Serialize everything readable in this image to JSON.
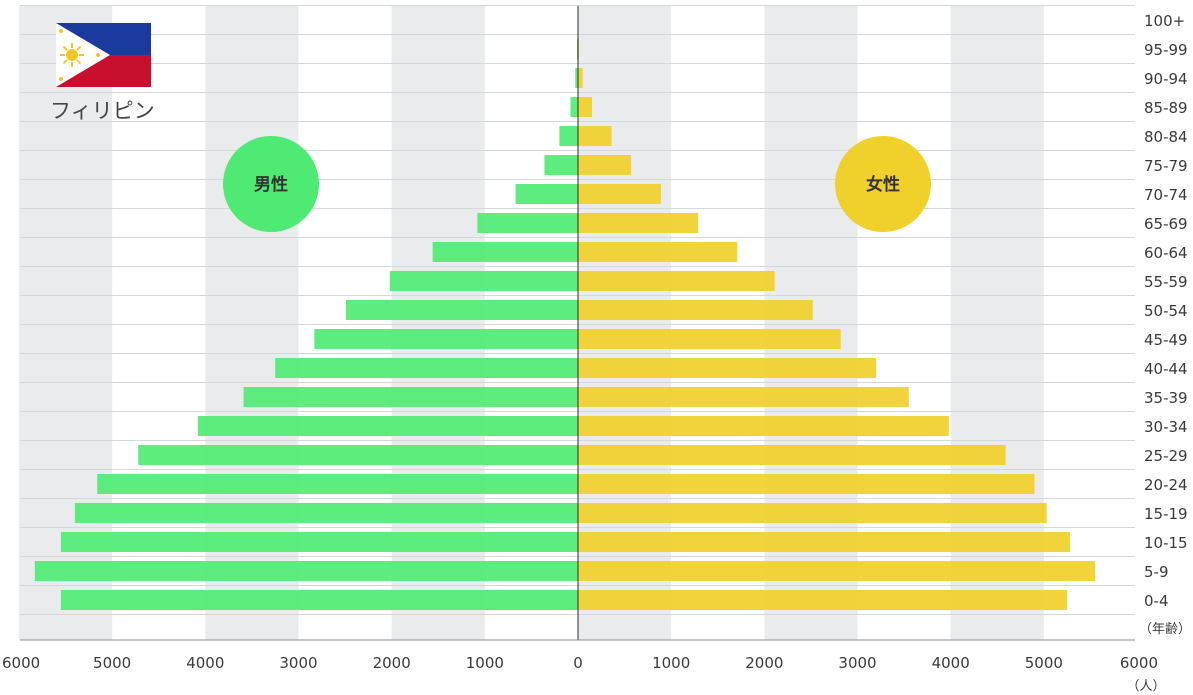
{
  "country": {
    "name": "フィリピン",
    "flag_icon": "philippines-flag-icon"
  },
  "badges": {
    "male": "男性",
    "female": "女性"
  },
  "units": {
    "age": "（年齢）",
    "people": "（人）"
  },
  "colors": {
    "male": "#4fea73",
    "female": "#f0d02a",
    "band": "#e9ebed",
    "gridline": "#d5d8db",
    "axis": "#2b2b2b",
    "flag_blue": "#1a3aa0",
    "flag_red": "#c8102e",
    "flag_sun": "#f3c624"
  },
  "chart_data": {
    "type": "bar",
    "orientation": "horizontal-population-pyramid",
    "categories": [
      "0-4",
      "5-9",
      "10-15",
      "15-19",
      "20-24",
      "25-29",
      "30-34",
      "35-39",
      "40-44",
      "45-49",
      "50-54",
      "55-59",
      "60-64",
      "65-69",
      "70-74",
      "75-79",
      "80-84",
      "85-89",
      "90-94",
      "95-99",
      "100+"
    ],
    "series": [
      {
        "name": "男性",
        "side": "left",
        "values": [
          5550,
          5830,
          5550,
          5400,
          5160,
          4720,
          4080,
          3590,
          3250,
          2830,
          2490,
          2020,
          1560,
          1080,
          670,
          360,
          200,
          80,
          30,
          10,
          0
        ]
      },
      {
        "name": "女性",
        "side": "right",
        "values": [
          5250,
          5550,
          5280,
          5030,
          4900,
          4590,
          3980,
          3550,
          3200,
          2820,
          2520,
          2110,
          1710,
          1290,
          890,
          570,
          360,
          150,
          50,
          10,
          0
        ]
      }
    ],
    "x_ticks": [
      "6000",
      "5000",
      "4000",
      "3000",
      "2000",
      "1000",
      "0",
      "1000",
      "2000",
      "3000",
      "4000",
      "5000",
      "6000"
    ],
    "xlim": [
      -6000,
      6000
    ],
    "grid": true,
    "legend": "badges"
  }
}
